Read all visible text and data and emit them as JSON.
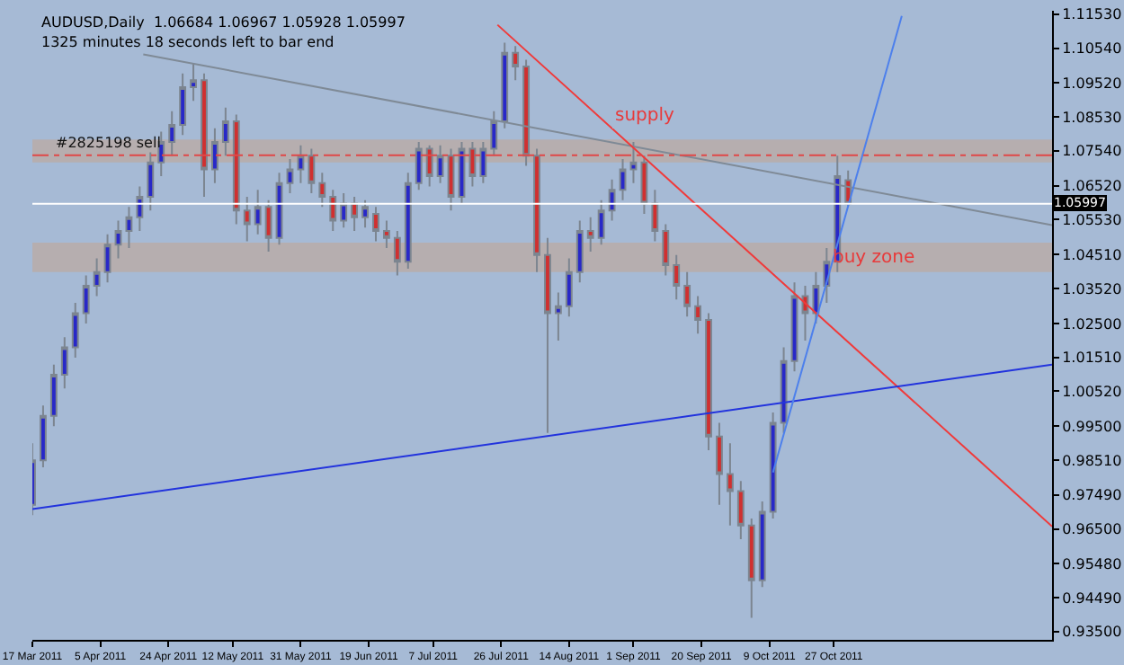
{
  "chart_data": {
    "type": "candlestick",
    "title": "AUDUSD,Daily  1.06684 1.06967 1.05928 1.05997",
    "subtitle": "1325 minutes 18 seconds left to bar end",
    "xlim": [
      "2011-03-17",
      "2011-12-27"
    ],
    "xticks": [
      {
        "value": "2011-03-17",
        "label": "17 Mar 2011"
      },
      {
        "value": "2011-04-05",
        "label": "5 Apr 2011"
      },
      {
        "value": "2011-04-24",
        "label": "24 Apr 2011"
      },
      {
        "value": "2011-05-12",
        "label": "12 May 2011"
      },
      {
        "value": "2011-05-31",
        "label": "31 May 2011"
      },
      {
        "value": "2011-06-19",
        "label": "19 Jun 2011"
      },
      {
        "value": "2011-07-07",
        "label": "7 Jul 2011"
      },
      {
        "value": "2011-07-26",
        "label": "26 Jul 2011"
      },
      {
        "value": "2011-08-14",
        "label": "14 Aug 2011"
      },
      {
        "value": "2011-09-01",
        "label": "1 Sep 2011"
      },
      {
        "value": "2011-09-20",
        "label": "20 Sep 2011"
      },
      {
        "value": "2011-10-09",
        "label": "9 Oct 2011"
      },
      {
        "value": "2011-10-27",
        "label": "27 Oct 2011"
      }
    ],
    "ylim": [
      0.9326,
      1.1163
    ],
    "yticks": [
      {
        "value": 1.1153,
        "label": "1.11530"
      },
      {
        "value": 1.1054,
        "label": "1.10540"
      },
      {
        "value": 1.0952,
        "label": "1.09520"
      },
      {
        "value": 1.0853,
        "label": "1.08530"
      },
      {
        "value": 1.0754,
        "label": "1.07540"
      },
      {
        "value": 1.0652,
        "label": "1.06520"
      },
      {
        "value": 1.0553,
        "label": "1.05530"
      },
      {
        "value": 1.0451,
        "label": "1.04510"
      },
      {
        "value": 1.0352,
        "label": "1.03520"
      },
      {
        "value": 1.025,
        "label": "1.02500"
      },
      {
        "value": 1.0151,
        "label": "1.01510"
      },
      {
        "value": 1.0052,
        "label": "1.00520"
      },
      {
        "value": 0.995,
        "label": "0.99500"
      },
      {
        "value": 0.9851,
        "label": "0.98510"
      },
      {
        "value": 0.9749,
        "label": "0.97490"
      },
      {
        "value": 0.965,
        "label": "0.96500"
      },
      {
        "value": 0.9548,
        "label": "0.95480"
      },
      {
        "value": 0.9449,
        "label": "0.94490"
      },
      {
        "value": 0.935,
        "label": "0.93500"
      }
    ],
    "grid": false,
    "series": [
      {
        "type": "line",
        "color": "#7f8a96",
        "x": [
          "2011-04-17",
          "2011-12-27"
        ],
        "values": [
          1.1036,
          1.0537
        ]
      },
      {
        "type": "line",
        "color": "#f03a3a",
        "x": [
          "2011-07-25",
          "2011-12-27"
        ],
        "values": [
          1.1122,
          0.9657
        ]
      },
      {
        "type": "line",
        "color": "#2233dd",
        "x": [
          "2011-03-17",
          "2011-12-27"
        ],
        "values": [
          0.9708,
          1.013
        ]
      },
      {
        "type": "line",
        "color": "#4d80ec",
        "x": [
          "2011-10-10",
          "2011-11-15"
        ],
        "values": [
          0.9815,
          1.1148
        ]
      },
      {
        "color": "#2828c8",
        "x": [
          "2011-03-17",
          "2011-03-20",
          "2011-03-23",
          "2011-03-26",
          "2011-03-29",
          "2011-04-01",
          "2011-04-04",
          "2011-04-07",
          "2011-04-10",
          "2011-04-13",
          "2011-04-16",
          "2011-04-19",
          "2011-04-22",
          "2011-04-25",
          "2011-04-28",
          "2011-05-01",
          "2011-05-07",
          "2011-05-10",
          "2011-05-19",
          "2011-05-25",
          "2011-05-28",
          "2011-05-31",
          "2011-06-12",
          "2011-06-18",
          "2011-06-30",
          "2011-07-03",
          "2011-07-09",
          "2011-07-15",
          "2011-07-21",
          "2011-07-24",
          "2011-07-27",
          "2011-08-11",
          "2011-08-14",
          "2011-08-17",
          "2011-08-23",
          "2011-08-26",
          "2011-08-29",
          "2011-09-01",
          "2011-10-07",
          "2011-10-10",
          "2011-10-13",
          "2011-10-16",
          "2011-10-22",
          "2011-10-25",
          "2011-10-28"
        ],
        "ohlc": [
          [
            0.972,
            0.99,
            0.969,
            0.985
          ],
          [
            0.985,
            1.001,
            0.983,
            0.998
          ],
          [
            0.998,
            1.013,
            0.995,
            1.01
          ],
          [
            1.01,
            1.021,
            1.006,
            1.018
          ],
          [
            1.018,
            1.031,
            1.015,
            1.028
          ],
          [
            1.028,
            1.039,
            1.025,
            1.036
          ],
          [
            1.036,
            1.044,
            1.033,
            1.04
          ],
          [
            1.04,
            1.051,
            1.037,
            1.048
          ],
          [
            1.048,
            1.055,
            1.044,
            1.052
          ],
          [
            1.052,
            1.059,
            1.047,
            1.056
          ],
          [
            1.056,
            1.065,
            1.052,
            1.062
          ],
          [
            1.062,
            1.075,
            1.058,
            1.072
          ],
          [
            1.072,
            1.081,
            1.068,
            1.078
          ],
          [
            1.078,
            1.087,
            1.074,
            1.083
          ],
          [
            1.083,
            1.098,
            1.08,
            1.094
          ],
          [
            1.094,
            1.101,
            1.09,
            1.096
          ],
          [
            1.07,
            1.082,
            1.066,
            1.078
          ],
          [
            1.078,
            1.088,
            1.074,
            1.084
          ],
          [
            1.054,
            1.064,
            1.051,
            1.059
          ],
          [
            1.05,
            1.069,
            1.048,
            1.066
          ],
          [
            1.066,
            1.073,
            1.063,
            1.07
          ],
          [
            1.07,
            1.077,
            1.066,
            1.074
          ],
          [
            1.055,
            1.063,
            1.053,
            1.06
          ],
          [
            1.056,
            1.061,
            1.053,
            1.059
          ],
          [
            1.043,
            1.069,
            1.041,
            1.066
          ],
          [
            1.066,
            1.078,
            1.064,
            1.076
          ],
          [
            1.068,
            1.077,
            1.066,
            1.074
          ],
          [
            1.062,
            1.078,
            1.06,
            1.076
          ],
          [
            1.068,
            1.078,
            1.066,
            1.076
          ],
          [
            1.076,
            1.087,
            1.074,
            1.084
          ],
          [
            1.084,
            1.107,
            1.082,
            1.104
          ],
          [
            1.028,
            1.034,
            1.02,
            1.03
          ],
          [
            1.03,
            1.044,
            1.027,
            1.04
          ],
          [
            1.04,
            1.055,
            1.037,
            1.052
          ],
          [
            1.05,
            1.061,
            1.048,
            1.058
          ],
          [
            1.058,
            1.067,
            1.055,
            1.064
          ],
          [
            1.064,
            1.073,
            1.061,
            1.07
          ],
          [
            1.07,
            1.078,
            1.066,
            1.072
          ],
          [
            0.95,
            0.973,
            0.948,
            0.97
          ],
          [
            0.97,
            0.999,
            0.968,
            0.996
          ],
          [
            0.996,
            1.018,
            0.993,
            1.014
          ],
          [
            1.014,
            1.037,
            1.011,
            1.033
          ],
          [
            1.028,
            1.04,
            1.025,
            1.036
          ],
          [
            1.036,
            1.047,
            1.031,
            1.043
          ],
          [
            1.043,
            1.074,
            1.04,
            1.068
          ]
        ]
      },
      {
        "color": "#d03030",
        "x": [
          "2011-05-04",
          "2011-05-13",
          "2011-05-16",
          "2011-05-22",
          "2011-06-03",
          "2011-06-06",
          "2011-06-09",
          "2011-06-15",
          "2011-06-21",
          "2011-06-24",
          "2011-06-27",
          "2011-07-06",
          "2011-07-12",
          "2011-07-18",
          "2011-07-30",
          "2011-08-02",
          "2011-08-05",
          "2011-08-08",
          "2011-08-20",
          "2011-09-04",
          "2011-09-07",
          "2011-09-10",
          "2011-09-13",
          "2011-09-16",
          "2011-09-19",
          "2011-09-22",
          "2011-09-25",
          "2011-09-28",
          "2011-10-01",
          "2011-10-04",
          "2011-10-19",
          "2011-10-31"
        ],
        "ohlc": [
          [
            1.096,
            1.098,
            1.062,
            1.07
          ],
          [
            1.084,
            1.086,
            1.054,
            1.058
          ],
          [
            1.058,
            1.062,
            1.049,
            1.054
          ],
          [
            1.059,
            1.061,
            1.046,
            1.05
          ],
          [
            1.074,
            1.076,
            1.063,
            1.066
          ],
          [
            1.066,
            1.069,
            1.059,
            1.062
          ],
          [
            1.062,
            1.064,
            1.052,
            1.055
          ],
          [
            1.06,
            1.062,
            1.052,
            1.056
          ],
          [
            1.057,
            1.059,
            1.049,
            1.052
          ],
          [
            1.052,
            1.055,
            1.047,
            1.05
          ],
          [
            1.05,
            1.052,
            1.039,
            1.043
          ],
          [
            1.076,
            1.077,
            1.065,
            1.068
          ],
          [
            1.074,
            1.076,
            1.058,
            1.062
          ],
          [
            1.076,
            1.078,
            1.065,
            1.068
          ],
          [
            1.104,
            1.106,
            1.096,
            1.1
          ],
          [
            1.1,
            1.102,
            1.071,
            1.074
          ],
          [
            1.074,
            1.076,
            1.04,
            1.045
          ],
          [
            1.045,
            1.05,
            0.993,
            1.028
          ],
          [
            1.052,
            1.056,
            1.046,
            1.05
          ],
          [
            1.072,
            1.074,
            1.057,
            1.06
          ],
          [
            1.06,
            1.064,
            1.049,
            1.052
          ],
          [
            1.052,
            1.054,
            1.039,
            1.042
          ],
          [
            1.042,
            1.045,
            1.032,
            1.036
          ],
          [
            1.036,
            1.04,
            1.027,
            1.03
          ],
          [
            1.03,
            1.033,
            1.022,
            1.026
          ],
          [
            1.026,
            1.028,
            0.988,
            0.992
          ],
          [
            0.992,
            0.996,
            0.972,
            0.981
          ],
          [
            0.981,
            0.99,
            0.966,
            0.976
          ],
          [
            0.976,
            0.979,
            0.962,
            0.966
          ],
          [
            0.966,
            0.968,
            0.939,
            0.95
          ],
          [
            1.033,
            1.036,
            1.02,
            1.028
          ],
          [
            1.06684,
            1.06967,
            1.05928,
            1.05997
          ]
        ]
      }
    ],
    "ref_lines": [
      {
        "axis": "y",
        "value": 1.0741,
        "label": "#2825198 sell",
        "color": "#e04848",
        "line_style": "dashed"
      },
      {
        "axis": "y",
        "value": 1.05997,
        "label": "1.05997",
        "color": "#ffffff",
        "line_style": "solid"
      }
    ],
    "bands": [
      {
        "axis": "y",
        "from": 1.072,
        "to": 1.0787,
        "color": "#b8aca8",
        "label": "supply"
      },
      {
        "axis": "y",
        "from": 1.04,
        "to": 1.0486,
        "color": "#b8aca8",
        "label": "buy zone"
      }
    ]
  }
}
